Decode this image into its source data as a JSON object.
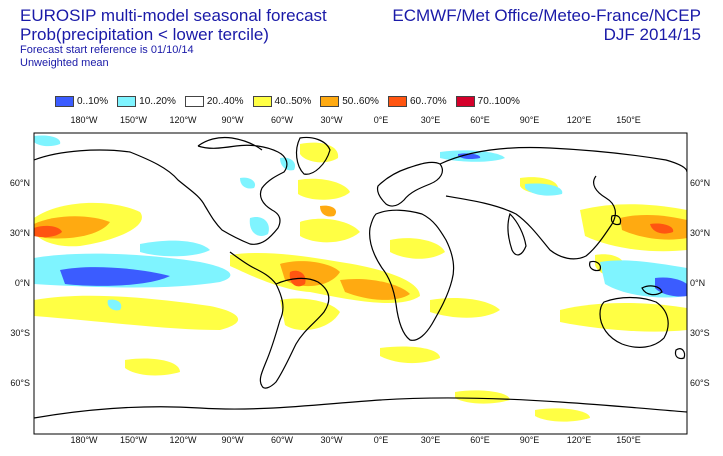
{
  "title": {
    "line1": "EUROSIP multi-model seasonal forecast",
    "line2": "Prob(precipitation < lower tercile)",
    "line3": "Forecast start reference is 01/10/14",
    "line4": "Unweighted mean"
  },
  "source": {
    "line1": "ECMWF/Met Office/Meteo-France/NCEP",
    "line2": "DJF 2014/15"
  },
  "legend": [
    {
      "label": "0..10%",
      "color": "#3b5cff"
    },
    {
      "label": "10..20%",
      "color": "#7ff4ff"
    },
    {
      "label": "20..40%",
      "color": "#ffffff"
    },
    {
      "label": "40..50%",
      "color": "#ffff44"
    },
    {
      "label": "50..60%",
      "color": "#ffaa11"
    },
    {
      "label": "60..70%",
      "color": "#ff5511"
    },
    {
      "label": "70..100%",
      "color": "#d4002a"
    }
  ],
  "axes": {
    "lon_labels": [
      "180°W",
      "150°W",
      "120°W",
      "90°W",
      "60°W",
      "30°W",
      "0°E",
      "30°E",
      "60°E",
      "90°E",
      "120°E",
      "150°E"
    ],
    "lat_labels": [
      "60°N",
      "30°N",
      "0°N",
      "30°S",
      "60°S"
    ]
  }
}
